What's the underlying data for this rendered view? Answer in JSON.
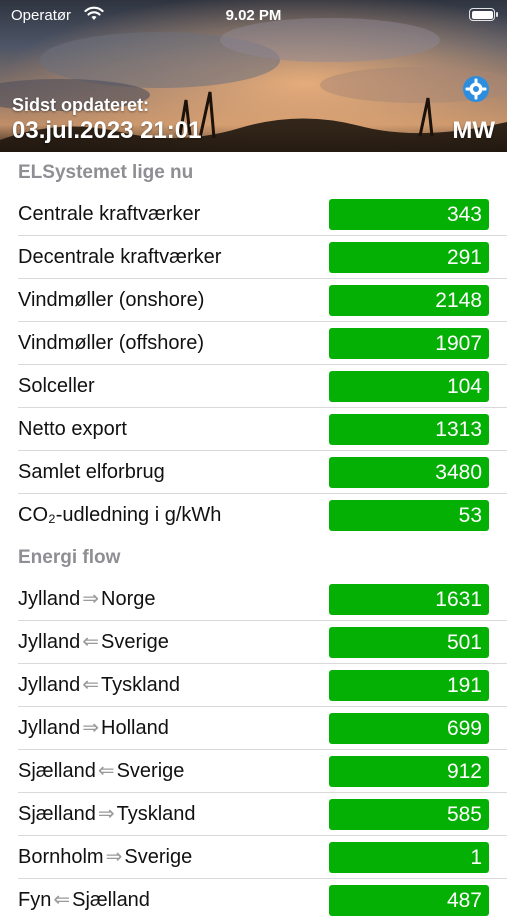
{
  "status_bar": {
    "carrier": "Operatør",
    "time": "9.02 PM"
  },
  "header": {
    "updated_label": "Sidst opdateret:",
    "updated_value": "03.jul.2023 21:01",
    "unit": "MW"
  },
  "sections": {
    "system": {
      "title": "ELSystemet lige nu",
      "rows": [
        {
          "label": "Centrale kraftværker",
          "value": "343"
        },
        {
          "label": "Decentrale kraftværker",
          "value": "291"
        },
        {
          "label": "Vindmøller (onshore)",
          "value": "2148"
        },
        {
          "label": "Vindmøller (offshore)",
          "value": "1907"
        },
        {
          "label": "Solceller",
          "value": "104"
        },
        {
          "label": "Netto export",
          "value": "1313"
        },
        {
          "label": "Samlet elforbrug",
          "value": "3480"
        },
        {
          "label": "CO₂-udledning i g/kWh",
          "value": "53"
        }
      ]
    },
    "flow": {
      "title": "Energi flow",
      "rows": [
        {
          "from": "Jylland",
          "arrow": "⇒",
          "to": "Norge",
          "value": "1631"
        },
        {
          "from": "Jylland",
          "arrow": "⇐",
          "to": "Sverige",
          "value": "501"
        },
        {
          "from": "Jylland",
          "arrow": "⇐",
          "to": "Tyskland",
          "value": "191"
        },
        {
          "from": "Jylland",
          "arrow": "⇒",
          "to": "Holland",
          "value": "699"
        },
        {
          "from": "Sjælland",
          "arrow": "⇐",
          "to": "Sverige",
          "value": "912"
        },
        {
          "from": "Sjælland",
          "arrow": "⇒",
          "to": "Tyskland",
          "value": "585"
        },
        {
          "from": "Bornholm",
          "arrow": "⇒",
          "to": "Sverige",
          "value": "1"
        },
        {
          "from": "Fyn",
          "arrow": "⇐",
          "to": "Sjælland",
          "value": "487"
        }
      ]
    }
  },
  "colors": {
    "value_bg": "#05b005",
    "section_text": "#8e8e93",
    "gear": "#2d8ee0"
  },
  "icons": {
    "wifi": "wifi-icon",
    "battery": "battery-icon",
    "settings": "gear-icon"
  }
}
